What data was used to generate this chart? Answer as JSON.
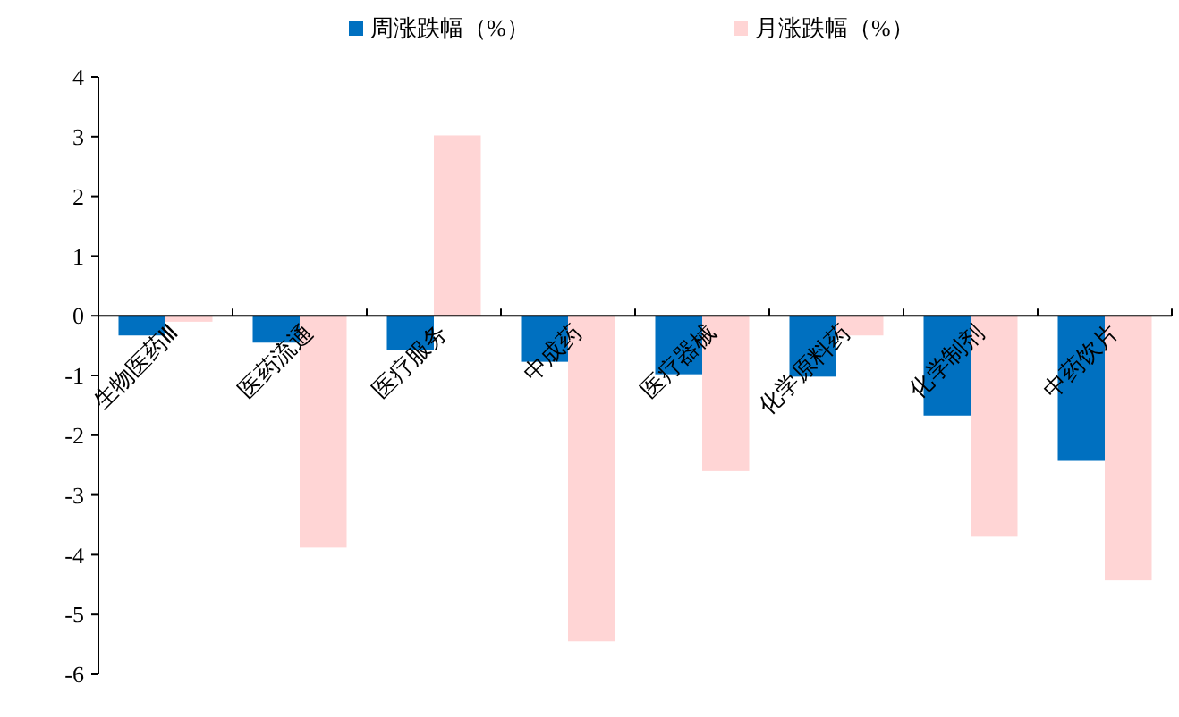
{
  "chart_data": {
    "type": "bar",
    "categories": [
      "生物医药Ⅲ",
      "医药流通",
      "医疗服务",
      "中成药",
      "医疗器械",
      "化学原料药",
      "化学制剂",
      "中药饮片"
    ],
    "series": [
      {
        "name": "周涨跌幅（%）",
        "color": "#0070c0",
        "values": [
          -0.33,
          -0.45,
          -0.58,
          -0.77,
          -0.98,
          -1.02,
          -1.67,
          -2.43
        ]
      },
      {
        "name": "月涨跌幅（%）",
        "color": "#ffd5d5",
        "values": [
          -0.1,
          -3.88,
          3.02,
          -5.45,
          -2.6,
          -0.33,
          -3.7,
          -4.43
        ]
      }
    ],
    "ylim": [
      -6,
      4
    ],
    "yticks": [
      -6,
      -5,
      -4,
      -3,
      -2,
      -1,
      0,
      1,
      2,
      3,
      4
    ],
    "grid": false,
    "legend": "top"
  }
}
